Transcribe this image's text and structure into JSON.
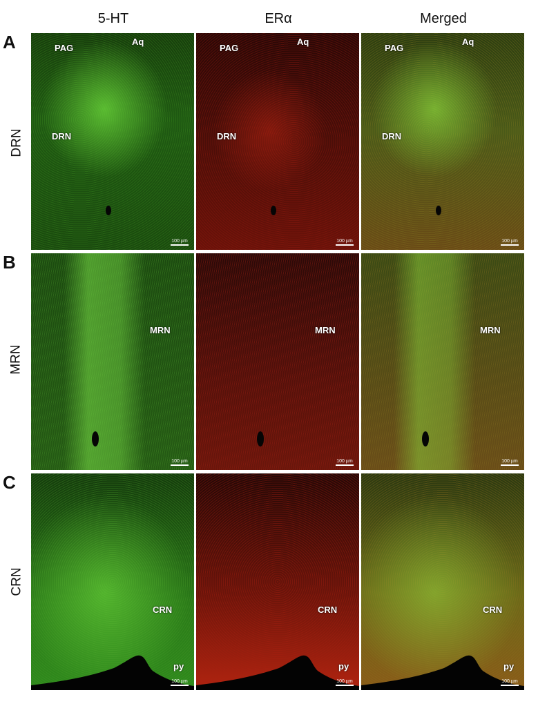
{
  "columns": [
    "5-HT",
    "ERα",
    "Merged"
  ],
  "rows": [
    {
      "letter": "A",
      "name": "DRN",
      "panels": [
        {
          "labels": [
            "PAG",
            "Aq",
            "DRN"
          ],
          "scale": "100 µm"
        },
        {
          "labels": [
            "PAG",
            "Aq",
            "DRN"
          ],
          "scale": "100 µm"
        },
        {
          "labels": [
            "PAG",
            "Aq",
            "DRN"
          ],
          "scale": "100 µm"
        }
      ]
    },
    {
      "letter": "B",
      "name": "MRN",
      "panels": [
        {
          "labels": [
            "MRN"
          ],
          "scale": "100 µm"
        },
        {
          "labels": [
            "MRN"
          ],
          "scale": "100 µm"
        },
        {
          "labels": [
            "MRN"
          ],
          "scale": "100 µm"
        }
      ]
    },
    {
      "letter": "C",
      "name": "CRN",
      "panels": [
        {
          "labels": [
            "CRN",
            "py"
          ],
          "scale": "100 µm"
        },
        {
          "labels": [
            "CRN",
            "py"
          ],
          "scale": "100 µm"
        },
        {
          "labels": [
            "CRN",
            "py"
          ],
          "scale": "100 µm"
        }
      ]
    }
  ],
  "colors": {
    "green_channel": "#3fbf1f",
    "red_channel": "#c82814",
    "merged_channel": "#9aa02a"
  }
}
